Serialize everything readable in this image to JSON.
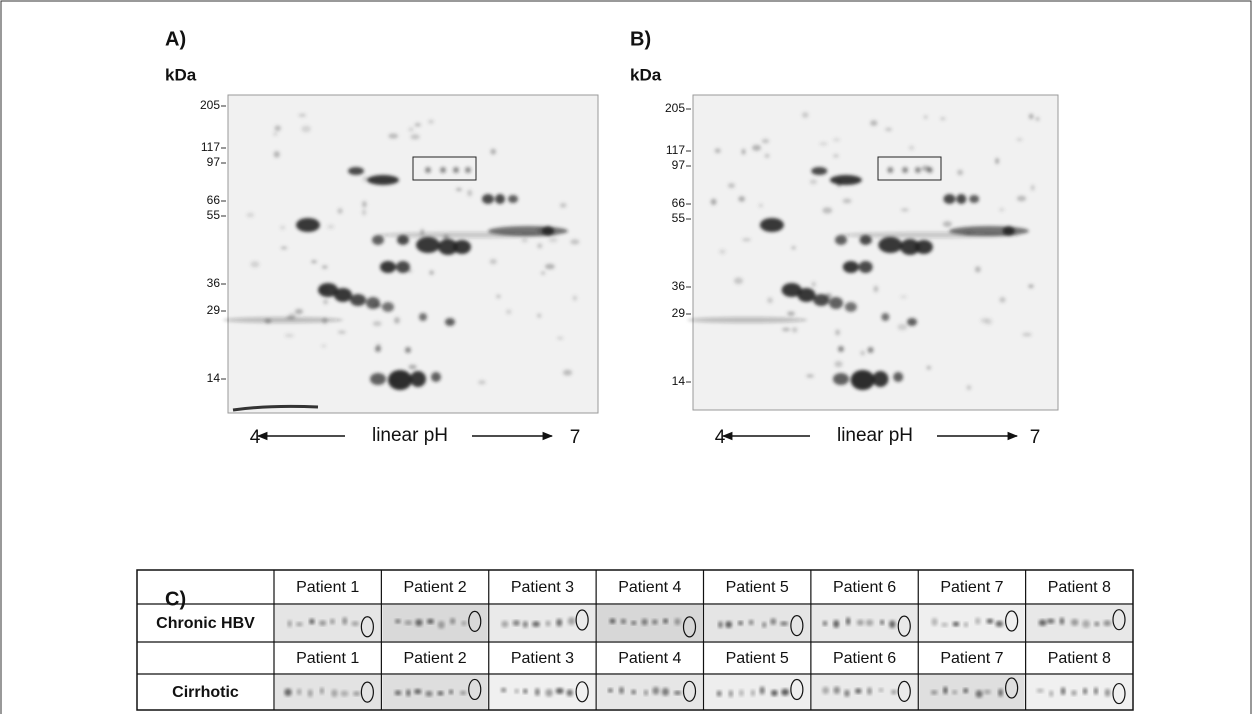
{
  "panels": [
    {
      "label": "A)",
      "unit": "kDa",
      "markers": [
        "205",
        "117",
        "97",
        "66",
        "55",
        "36",
        "29",
        "14"
      ],
      "axis": {
        "left": "4",
        "center": "linear pH",
        "right": "7"
      }
    },
    {
      "label": "B)",
      "unit": "kDa",
      "markers": [
        "205",
        "117",
        "97",
        "66",
        "55",
        "36",
        "29",
        "14"
      ],
      "axis": {
        "left": "4",
        "center": "linear pH",
        "right": "7"
      }
    }
  ],
  "table": {
    "label": "C)",
    "groups": [
      {
        "patients": [
          "Patient 1",
          "Patient 2",
          "Patient 3",
          "Patient 4",
          "Patient 5",
          "Patient 6",
          "Patient 7",
          "Patient 8"
        ],
        "name": "Chronic HBV"
      },
      {
        "patients": [
          "Patient 1",
          "Patient 2",
          "Patient 3",
          "Patient 4",
          "Patient 5",
          "Patient 6",
          "Patient 7",
          "Patient 8"
        ],
        "name": "Cirrhotic"
      }
    ]
  }
}
